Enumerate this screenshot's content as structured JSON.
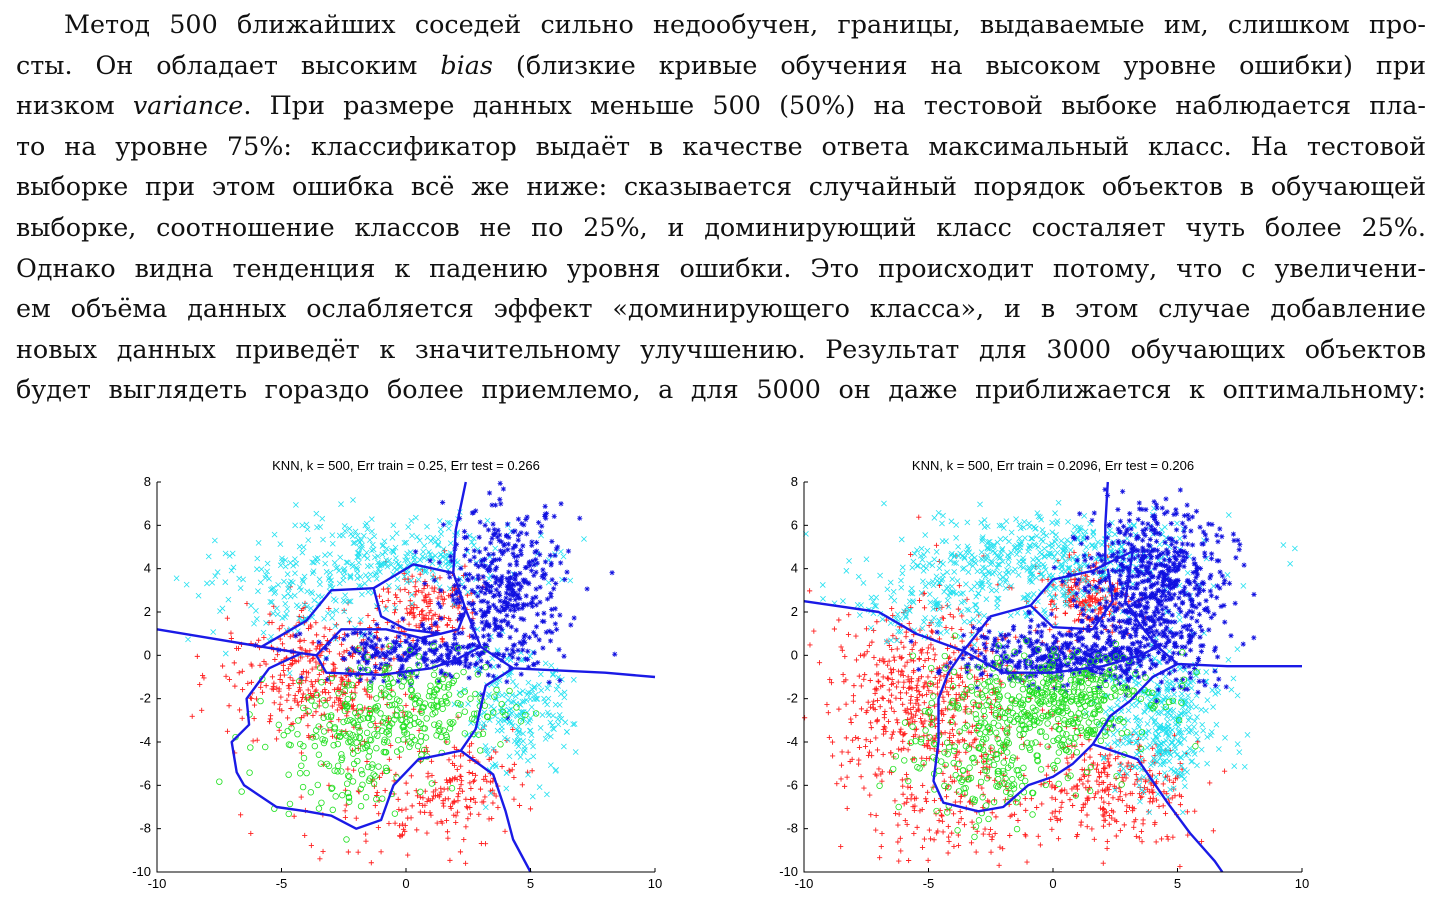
{
  "paragraph": {
    "lines": [
      [
        "Метод 500 ближайших соседей сильно недообучен, границы, выдаваемые им, слишком про-"
      ],
      [
        "сты. Он обладает высоким ",
        {
          "em": "bias"
        },
        " (близкие кривые обучения на высоком уровне ошибки) при"
      ],
      [
        "низком ",
        {
          "em": "variance"
        },
        ". При размере данных меньше 500 (50%) на тестовой выбоке наблюдается пла-"
      ],
      [
        "то на уровне 75%: классификатор выдаёт в качестве ответа максимальный класс. На тестовой"
      ],
      [
        "выборке при этом ошибка всё же ниже: сказывается случайный порядок объектов в обучающей"
      ],
      [
        "выборке, соотношение классов не по 25%, и доминирующий класс состаляет чуть более 25%."
      ],
      [
        "Однако видна тенденция к падению уровня ошибки. Это происходит потому, что с увеличени-"
      ],
      [
        "ем объёма данных ослабляется эффект «доминирующего класса», и в этом случае добавление"
      ],
      [
        "новых данных приведёт к значительному улучшению. Результат для 3000 обучающих объектов"
      ],
      [
        "будет выглядеть гораздо более приемлемо, а для 5000 он даже приближается к оптимальному:"
      ]
    ]
  },
  "colors": {
    "red": "#ff2020",
    "cyan": "#22e0f0",
    "blue": "#1010e0",
    "green": "#20e020",
    "boundary": "#1a1ae6"
  },
  "chart_data": [
    {
      "type": "scatter",
      "title": "KNN, k = 500, Err train = 0.25, Err test = 0.266",
      "xlim": [
        -10,
        10
      ],
      "ylim": [
        -10,
        8
      ],
      "xticks": [
        -10,
        -5,
        0,
        5,
        10
      ],
      "yticks": [
        -10,
        -8,
        -6,
        -4,
        -2,
        0,
        2,
        4,
        6,
        8
      ],
      "classes": [
        {
          "marker": "+",
          "color": "red",
          "clusters": [
            [
              -3.5,
              -1,
              1.8,
              1.6,
              420
            ],
            [
              1,
              2.4,
              0.9,
              0.9,
              160
            ],
            [
              2,
              -6,
              1.4,
              1.2,
              160
            ],
            [
              -1,
              -7,
              2,
              1.5,
              80
            ]
          ]
        },
        {
          "marker": "x",
          "color": "cyan",
          "clusters": [
            [
              -1,
              4.5,
              2.8,
              0.9,
              300
            ],
            [
              4.5,
              -2.8,
              1.1,
              1.4,
              220
            ],
            [
              -4,
              2.5,
              2,
              1,
              120
            ]
          ]
        },
        {
          "marker": "*",
          "color": "blue",
          "clusters": [
            [
              4,
              3.2,
              1.2,
              1.8,
              420
            ],
            [
              0.5,
              0,
              2.2,
              0.6,
              260
            ]
          ]
        },
        {
          "marker": "o",
          "color": "green",
          "clusters": [
            [
              0.3,
              -2.4,
              2,
              1.1,
              260
            ],
            [
              -2.5,
              -4.5,
              1.6,
              1.4,
              140
            ]
          ]
        }
      ],
      "boundaries": [
        [
          [
            2.4,
            8
          ],
          [
            2,
            5.8
          ],
          [
            1.9,
            3.8
          ],
          [
            2.4,
            2.1
          ],
          [
            2.1,
            1.2
          ],
          [
            1.4,
            1.0
          ],
          [
            0,
            1.2
          ],
          [
            -1,
            1.8
          ],
          [
            -1.3,
            3.1
          ],
          [
            0.3,
            4.2
          ],
          [
            1.9,
            3.8
          ]
        ],
        [
          [
            -1.3,
            3.1
          ],
          [
            -3,
            3
          ],
          [
            -4,
            1.6
          ],
          [
            -5.8,
            0.4
          ],
          [
            -10,
            1.2
          ]
        ],
        [
          [
            1.4,
            1.0
          ],
          [
            0.6,
            0.8
          ],
          [
            -0.8,
            1.2
          ],
          [
            -2.6,
            1.2
          ],
          [
            -3.6,
            0
          ],
          [
            -4.2,
            0.1
          ],
          [
            -5.8,
            0.4
          ]
        ],
        [
          [
            2.4,
            2.1
          ],
          [
            3,
            0.4
          ],
          [
            4.3,
            -0.6
          ],
          [
            8,
            -0.8
          ],
          [
            10,
            -1
          ]
        ],
        [
          [
            4.3,
            -0.6
          ],
          [
            3.2,
            -1.4
          ],
          [
            2.8,
            -3.4
          ],
          [
            2.2,
            -4.4
          ],
          [
            0.5,
            -4.8
          ],
          [
            -0.5,
            -6
          ],
          [
            -1,
            -7.6
          ],
          [
            -2,
            -8
          ],
          [
            -3,
            -7.4
          ],
          [
            -4,
            -7.2
          ],
          [
            -5.2,
            -7
          ],
          [
            -6.5,
            -6
          ],
          [
            -6.8,
            -5.4
          ],
          [
            -7,
            -4
          ],
          [
            -6.3,
            -3.2
          ],
          [
            -6.4,
            -2
          ],
          [
            -5.5,
            -0.6
          ],
          [
            -4.2,
            0.1
          ]
        ],
        [
          [
            -3.6,
            0
          ],
          [
            -3.2,
            -0.8
          ],
          [
            -1,
            -0.9
          ],
          [
            1,
            -0.6
          ],
          [
            2,
            -0.2
          ],
          [
            3,
            0.4
          ]
        ],
        [
          [
            2.2,
            -4.4
          ],
          [
            3.5,
            -5.5
          ],
          [
            4,
            -7.2
          ],
          [
            4.3,
            -8.5
          ],
          [
            5,
            -10
          ]
        ]
      ],
      "seed": 11
    },
    {
      "type": "scatter",
      "title": "KNN, k = 500, Err train = 0.2096, Err test = 0.206",
      "xlim": [
        -10,
        10
      ],
      "ylim": [
        -10,
        8
      ],
      "xticks": [
        -10,
        -5,
        0,
        5,
        10
      ],
      "yticks": [
        -10,
        -8,
        -6,
        -4,
        -2,
        0,
        2,
        4,
        6,
        8
      ],
      "classes": [
        {
          "marker": "+",
          "color": "red",
          "clusters": [
            [
              -5,
              -2,
              1.9,
              2.2,
              620
            ],
            [
              1.2,
              2.6,
              0.9,
              0.8,
              200
            ],
            [
              2.6,
              -6.2,
              1.8,
              1.2,
              300
            ],
            [
              -4,
              -7.5,
              1.8,
              1.2,
              120
            ]
          ]
        },
        {
          "marker": "x",
          "color": "cyan",
          "clusters": [
            [
              -0.5,
              4.3,
              3,
              1.1,
              520
            ],
            [
              4.4,
              -3,
              1.2,
              1.6,
              380
            ],
            [
              -5,
              2.4,
              1.6,
              1,
              120
            ]
          ]
        },
        {
          "marker": "*",
          "color": "blue",
          "clusters": [
            [
              4,
              3.2,
              1.4,
              1.9,
              700
            ],
            [
              0.7,
              0,
              2.3,
              0.7,
              450
            ]
          ]
        },
        {
          "marker": "o",
          "color": "green",
          "clusters": [
            [
              0.2,
              -2.2,
              2,
              1.1,
              420
            ],
            [
              -2.5,
              -4.8,
              1.8,
              1.4,
              200
            ]
          ]
        }
      ],
      "boundaries": [
        [
          [
            2.2,
            8
          ],
          [
            2.1,
            6
          ],
          [
            2.1,
            4.2
          ],
          [
            1.6,
            3.9
          ],
          [
            0,
            3.5
          ],
          [
            -0.9,
            2.3
          ],
          [
            0,
            1.3
          ],
          [
            1.6,
            1.2
          ],
          [
            2.4,
            2.5
          ],
          [
            2.2,
            4
          ]
        ],
        [
          [
            2.1,
            4.2
          ],
          [
            3.2,
            4.8
          ],
          [
            2.9,
            2.5
          ],
          [
            3.5,
            1.4
          ],
          [
            4.2,
            0.4
          ],
          [
            5,
            -0.4
          ],
          [
            7,
            -0.5
          ],
          [
            10,
            -0.5
          ]
        ],
        [
          [
            -0.9,
            2.3
          ],
          [
            -2.5,
            1.8
          ],
          [
            -3.6,
            0.2
          ],
          [
            -5.5,
            1
          ],
          [
            -7,
            2
          ],
          [
            -10,
            2.5
          ]
        ],
        [
          [
            -3.6,
            0.2
          ],
          [
            -4.2,
            -0.8
          ],
          [
            -4.6,
            -2
          ],
          [
            -4.6,
            -4
          ],
          [
            -4.8,
            -5.8
          ],
          [
            -4.4,
            -6.8
          ],
          [
            -3,
            -7.2
          ],
          [
            -2,
            -7
          ],
          [
            -1,
            -6
          ],
          [
            0,
            -5.6
          ],
          [
            0.8,
            -5
          ],
          [
            1.6,
            -4.1
          ],
          [
            2.3,
            -2.8
          ],
          [
            3.1,
            -2.1
          ],
          [
            4,
            -1
          ],
          [
            5,
            -0.4
          ]
        ],
        [
          [
            -3.6,
            0.2
          ],
          [
            -2,
            -0.8
          ],
          [
            0,
            -0.8
          ],
          [
            2,
            -0.5
          ],
          [
            3.5,
            0
          ],
          [
            4.2,
            0.4
          ]
        ],
        [
          [
            1.6,
            -4.1
          ],
          [
            3.4,
            -4.8
          ],
          [
            4.6,
            -6.8
          ],
          [
            5.5,
            -8.2
          ],
          [
            6.5,
            -9.5
          ],
          [
            6.8,
            -10
          ]
        ]
      ],
      "seed": 29
    }
  ]
}
